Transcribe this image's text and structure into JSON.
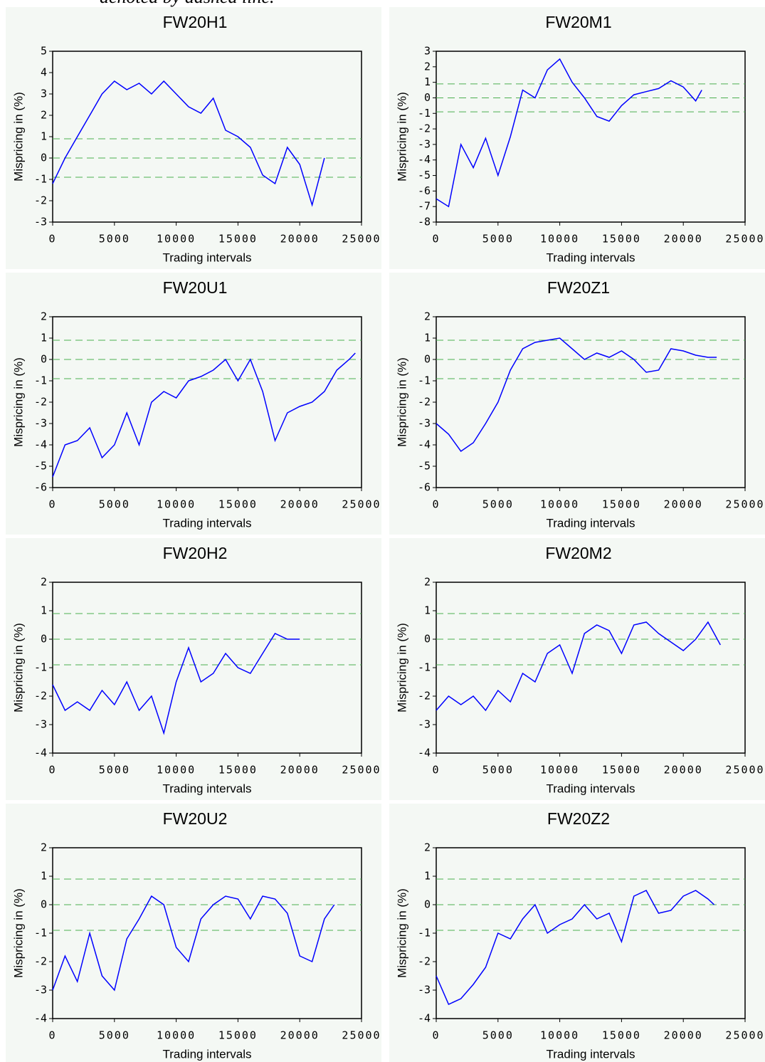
{
  "caption_fragment": "denoted by dashed line.",
  "chart_data": [
    {
      "type": "line",
      "title": "FW20H1",
      "xlabel": "Trading intervals",
      "ylabel": "Mispricing in (%)",
      "x": [
        0,
        1000,
        2000,
        3000,
        4000,
        5000,
        6000,
        7000,
        8000,
        9000,
        10000,
        11000,
        12000,
        13000,
        14000,
        15000,
        16000,
        17000,
        18000,
        19000,
        20000,
        21000,
        22000
      ],
      "series": [
        {
          "color": "#0000ff",
          "values": [
            -1.2,
            0,
            1,
            2,
            3,
            3.6,
            3.2,
            3.5,
            3,
            3.6,
            3,
            2.4,
            2.1,
            2.8,
            1.3,
            1,
            0.5,
            -0.8,
            -1.2,
            0.5,
            -0.3,
            -2.2,
            0
          ]
        }
      ],
      "xlim": [
        0,
        25000
      ],
      "ylim": [
        -3,
        5
      ],
      "xticks": [
        0,
        5000,
        10000,
        15000,
        20000,
        25000
      ],
      "yticks": [
        -3,
        -2,
        -1,
        0,
        1,
        2,
        3,
        4,
        5
      ],
      "reference_lines": {
        "values": [
          0.9,
          0,
          -0.9
        ],
        "color": "#4caf50"
      }
    },
    {
      "type": "line",
      "title": "FW20M1",
      "xlabel": "Trading intervals",
      "ylabel": "Mispricing in (%)",
      "x": [
        0,
        1000,
        2000,
        3000,
        4000,
        5000,
        6000,
        7000,
        8000,
        9000,
        10000,
        11000,
        12000,
        13000,
        14000,
        15000,
        16000,
        17000,
        18000,
        19000,
        20000,
        21000,
        21500
      ],
      "series": [
        {
          "color": "#0000ff",
          "values": [
            -6.5,
            -7,
            -3,
            -4.5,
            -2.6,
            -5,
            -2.5,
            0.5,
            0,
            1.8,
            2.5,
            1,
            0,
            -1.2,
            -1.5,
            -0.5,
            0.2,
            0.4,
            0.6,
            1.1,
            0.7,
            -0.2,
            0.5
          ]
        }
      ],
      "xlim": [
        0,
        25000
      ],
      "ylim": [
        -8,
        3
      ],
      "xticks": [
        0,
        5000,
        10000,
        15000,
        20000,
        25000
      ],
      "yticks": [
        -8,
        -7,
        -6,
        -5,
        -4,
        -3,
        -2,
        -1,
        0,
        1,
        2,
        3
      ],
      "reference_lines": {
        "values": [
          0.9,
          0,
          -0.9
        ],
        "color": "#4caf50"
      }
    },
    {
      "type": "line",
      "title": "FW20U1",
      "xlabel": "Trading intervals",
      "ylabel": "Mispricing in (%)",
      "x": [
        0,
        1000,
        2000,
        3000,
        4000,
        5000,
        6000,
        7000,
        8000,
        9000,
        10000,
        11000,
        12000,
        13000,
        14000,
        15000,
        16000,
        17000,
        18000,
        19000,
        20000,
        21000,
        22000,
        23000,
        24000,
        24500
      ],
      "series": [
        {
          "color": "#0000ff",
          "values": [
            -5.5,
            -4,
            -3.8,
            -3.2,
            -4.6,
            -4,
            -2.5,
            -4,
            -2,
            -1.5,
            -1.8,
            -1,
            -0.8,
            -0.5,
            0,
            -1,
            0,
            -1.5,
            -3.8,
            -2.5,
            -2.2,
            -2,
            -1.5,
            -0.5,
            0,
            0.3
          ]
        }
      ],
      "xlim": [
        0,
        25000
      ],
      "ylim": [
        -6,
        2
      ],
      "xticks": [
        0,
        5000,
        10000,
        15000,
        20000,
        25000
      ],
      "yticks": [
        -6,
        -5,
        -4,
        -3,
        -2,
        -1,
        0,
        1,
        2
      ],
      "reference_lines": {
        "values": [
          0.9,
          0,
          -0.9
        ],
        "color": "#4caf50"
      }
    },
    {
      "type": "line",
      "title": "FW20Z1",
      "xlabel": "Trading intervals",
      "ylabel": "Mispricing in (%)",
      "x": [
        0,
        1000,
        2000,
        3000,
        4000,
        5000,
        6000,
        7000,
        8000,
        9000,
        10000,
        11000,
        12000,
        13000,
        14000,
        15000,
        16000,
        17000,
        18000,
        19000,
        20000,
        21000,
        22000,
        22700
      ],
      "series": [
        {
          "color": "#0000ff",
          "values": [
            -3,
            -3.5,
            -4.3,
            -3.9,
            -3,
            -2,
            -0.5,
            0.5,
            0.8,
            0.9,
            1,
            0.5,
            0,
            0.3,
            0.1,
            0.4,
            0,
            -0.6,
            -0.5,
            0.5,
            0.4,
            0.2,
            0.1,
            0.1
          ]
        }
      ],
      "xlim": [
        0,
        25000
      ],
      "ylim": [
        -6,
        2
      ],
      "xticks": [
        0,
        5000,
        10000,
        15000,
        20000,
        25000
      ],
      "yticks": [
        -6,
        -5,
        -4,
        -3,
        -2,
        -1,
        0,
        1,
        2
      ],
      "reference_lines": {
        "values": [
          0.9,
          0,
          -0.9
        ],
        "color": "#4caf50"
      }
    },
    {
      "type": "line",
      "title": "FW20H2",
      "xlabel": "Trading intervals",
      "ylabel": "Mispricing in (%)",
      "x": [
        0,
        1000,
        2000,
        3000,
        4000,
        5000,
        6000,
        7000,
        8000,
        9000,
        10000,
        11000,
        12000,
        13000,
        14000,
        15000,
        16000,
        17000,
        18000,
        19000,
        20000
      ],
      "series": [
        {
          "color": "#0000ff",
          "values": [
            -1.6,
            -2.5,
            -2.2,
            -2.5,
            -1.8,
            -2.3,
            -1.5,
            -2.5,
            -2,
            -3.3,
            -1.5,
            -0.3,
            -1.5,
            -1.2,
            -0.5,
            -1,
            -1.2,
            -0.5,
            0.2,
            0,
            0
          ]
        }
      ],
      "xlim": [
        0,
        25000
      ],
      "ylim": [
        -4,
        2
      ],
      "xticks": [
        0,
        5000,
        10000,
        15000,
        20000,
        25000
      ],
      "yticks": [
        -4,
        -3,
        -2,
        -1,
        0,
        1,
        2
      ],
      "reference_lines": {
        "values": [
          0.9,
          0,
          -0.9
        ],
        "color": "#4caf50"
      }
    },
    {
      "type": "line",
      "title": "FW20M2",
      "xlabel": "Trading intervals",
      "ylabel": "Mispricing in (%)",
      "x": [
        0,
        1000,
        2000,
        3000,
        4000,
        5000,
        6000,
        7000,
        8000,
        9000,
        10000,
        11000,
        12000,
        13000,
        14000,
        15000,
        16000,
        17000,
        18000,
        19000,
        20000,
        21000,
        22000,
        23000
      ],
      "series": [
        {
          "color": "#0000ff",
          "values": [
            -2.5,
            -2,
            -2.3,
            -2,
            -2.5,
            -1.8,
            -2.2,
            -1.2,
            -1.5,
            -0.5,
            -0.2,
            -1.2,
            0.2,
            0.5,
            0.3,
            -0.5,
            0.5,
            0.6,
            0.2,
            -0.1,
            -0.4,
            0,
            0.6,
            -0.2
          ]
        }
      ],
      "xlim": [
        0,
        25000
      ],
      "ylim": [
        -4,
        2
      ],
      "xticks": [
        0,
        5000,
        10000,
        15000,
        20000,
        25000
      ],
      "yticks": [
        -4,
        -3,
        -2,
        -1,
        0,
        1,
        2
      ],
      "reference_lines": {
        "values": [
          0.9,
          0,
          -0.9
        ],
        "color": "#4caf50"
      }
    },
    {
      "type": "line",
      "title": "FW20U2",
      "xlabel": "Trading intervals",
      "ylabel": "Mispricing in (%)",
      "x": [
        0,
        1000,
        2000,
        3000,
        4000,
        5000,
        6000,
        7000,
        8000,
        9000,
        10000,
        11000,
        12000,
        13000,
        14000,
        15000,
        16000,
        17000,
        18000,
        19000,
        20000,
        21000,
        22000,
        22800
      ],
      "series": [
        {
          "color": "#0000ff",
          "values": [
            -3,
            -1.8,
            -2.7,
            -1,
            -2.5,
            -3,
            -1.2,
            -0.5,
            0.3,
            0,
            -1.5,
            -2,
            -0.5,
            0,
            0.3,
            0.2,
            -0.5,
            0.3,
            0.2,
            -0.3,
            -1.8,
            -2,
            -0.5,
            0
          ]
        }
      ],
      "xlim": [
        0,
        25000
      ],
      "ylim": [
        -4,
        2
      ],
      "xticks": [
        0,
        5000,
        10000,
        15000,
        20000,
        25000
      ],
      "yticks": [
        -4,
        -3,
        -2,
        -1,
        0,
        1,
        2
      ],
      "reference_lines": {
        "values": [
          0.9,
          0,
          -0.9
        ],
        "color": "#4caf50"
      }
    },
    {
      "type": "line",
      "title": "FW20Z2",
      "xlabel": "Trading intervals",
      "ylabel": "Mispricing in (%)",
      "x": [
        0,
        1000,
        2000,
        3000,
        4000,
        5000,
        6000,
        7000,
        8000,
        9000,
        10000,
        11000,
        12000,
        13000,
        14000,
        15000,
        16000,
        17000,
        18000,
        19000,
        20000,
        21000,
        22000,
        22500
      ],
      "series": [
        {
          "color": "#0000ff",
          "values": [
            -2.5,
            -3.5,
            -3.3,
            -2.8,
            -2.2,
            -1,
            -1.2,
            -0.5,
            0,
            -1,
            -0.7,
            -0.5,
            0,
            -0.5,
            -0.3,
            -1.3,
            0.3,
            0.5,
            -0.3,
            -0.2,
            0.3,
            0.5,
            0.2,
            0
          ]
        }
      ],
      "xlim": [
        0,
        25000
      ],
      "ylim": [
        -4,
        2
      ],
      "xticks": [
        0,
        5000,
        10000,
        15000,
        20000,
        25000
      ],
      "yticks": [
        -4,
        -3,
        -2,
        -1,
        0,
        1,
        2
      ],
      "reference_lines": {
        "values": [
          0.9,
          0,
          -0.9
        ],
        "color": "#4caf50"
      }
    }
  ]
}
